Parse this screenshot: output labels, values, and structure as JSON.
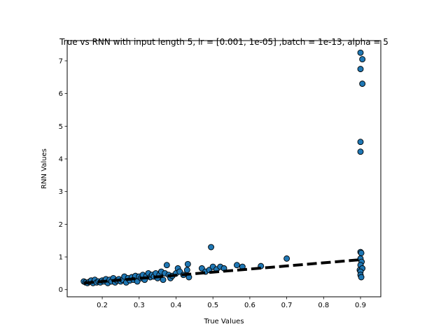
{
  "chart_data": {
    "type": "scatter",
    "title": "True vs RNN with input length 5, lr = [0.001, 1e-05] ,batch = 1e-13, alpha = 5",
    "xlabel": "True Values",
    "ylabel": "RNN Values",
    "xlim": [
      0.105,
      0.955
    ],
    "ylim": [
      -0.22,
      7.62
    ],
    "xticks": [
      "0.2",
      "0.3",
      "0.4",
      "0.5",
      "0.6",
      "0.7",
      "0.8",
      "0.9"
    ],
    "yticks": [
      "0",
      "1",
      "2",
      "3",
      "4",
      "5",
      "6",
      "7"
    ],
    "grid": false,
    "marker_color": "#1f77b4",
    "marker_edge_color": "#000000",
    "fit_line": {
      "style": "dashed",
      "color": "#000000",
      "x": [
        0.15,
        0.905
      ],
      "y": [
        0.2,
        0.92
      ]
    },
    "points": [
      [
        0.15,
        0.25
      ],
      [
        0.155,
        0.22
      ],
      [
        0.16,
        0.2
      ],
      [
        0.165,
        0.24
      ],
      [
        0.17,
        0.28
      ],
      [
        0.175,
        0.2
      ],
      [
        0.18,
        0.3
      ],
      [
        0.185,
        0.22
      ],
      [
        0.19,
        0.25
      ],
      [
        0.195,
        0.22
      ],
      [
        0.2,
        0.28
      ],
      [
        0.205,
        0.25
      ],
      [
        0.21,
        0.32
      ],
      [
        0.215,
        0.2
      ],
      [
        0.22,
        0.3
      ],
      [
        0.225,
        0.25
      ],
      [
        0.23,
        0.35
      ],
      [
        0.235,
        0.22
      ],
      [
        0.24,
        0.28
      ],
      [
        0.245,
        0.32
      ],
      [
        0.25,
        0.25
      ],
      [
        0.255,
        0.3
      ],
      [
        0.26,
        0.4
      ],
      [
        0.265,
        0.22
      ],
      [
        0.27,
        0.35
      ],
      [
        0.275,
        0.28
      ],
      [
        0.28,
        0.38
      ],
      [
        0.285,
        0.3
      ],
      [
        0.29,
        0.42
      ],
      [
        0.295,
        0.25
      ],
      [
        0.3,
        0.4
      ],
      [
        0.305,
        0.35
      ],
      [
        0.31,
        0.45
      ],
      [
        0.315,
        0.3
      ],
      [
        0.32,
        0.42
      ],
      [
        0.325,
        0.5
      ],
      [
        0.33,
        0.38
      ],
      [
        0.335,
        0.45
      ],
      [
        0.34,
        0.4
      ],
      [
        0.345,
        0.5
      ],
      [
        0.35,
        0.35
      ],
      [
        0.355,
        0.45
      ],
      [
        0.36,
        0.55
      ],
      [
        0.365,
        0.3
      ],
      [
        0.37,
        0.5
      ],
      [
        0.375,
        0.75
      ],
      [
        0.38,
        0.45
      ],
      [
        0.385,
        0.35
      ],
      [
        0.39,
        0.42
      ],
      [
        0.4,
        0.5
      ],
      [
        0.405,
        0.65
      ],
      [
        0.41,
        0.55
      ],
      [
        0.42,
        0.45
      ],
      [
        0.43,
        0.6
      ],
      [
        0.432,
        0.78
      ],
      [
        0.435,
        0.38
      ],
      [
        0.47,
        0.65
      ],
      [
        0.48,
        0.55
      ],
      [
        0.49,
        0.6
      ],
      [
        0.495,
        1.3
      ],
      [
        0.5,
        0.7
      ],
      [
        0.51,
        0.62
      ],
      [
        0.52,
        0.7
      ],
      [
        0.53,
        0.65
      ],
      [
        0.565,
        0.75
      ],
      [
        0.58,
        0.7
      ],
      [
        0.63,
        0.72
      ],
      [
        0.7,
        0.95
      ],
      [
        0.9,
        7.25
      ],
      [
        0.905,
        7.05
      ],
      [
        0.9,
        6.75
      ],
      [
        0.905,
        6.3
      ],
      [
        0.9,
        4.52
      ],
      [
        0.9,
        4.22
      ],
      [
        0.9,
        1.15
      ],
      [
        0.902,
        1.12
      ],
      [
        0.9,
        0.95
      ],
      [
        0.903,
        0.85
      ],
      [
        0.9,
        0.75
      ],
      [
        0.898,
        0.6
      ],
      [
        0.905,
        0.65
      ],
      [
        0.9,
        0.55
      ],
      [
        0.9,
        0.45
      ],
      [
        0.902,
        0.38
      ]
    ]
  }
}
